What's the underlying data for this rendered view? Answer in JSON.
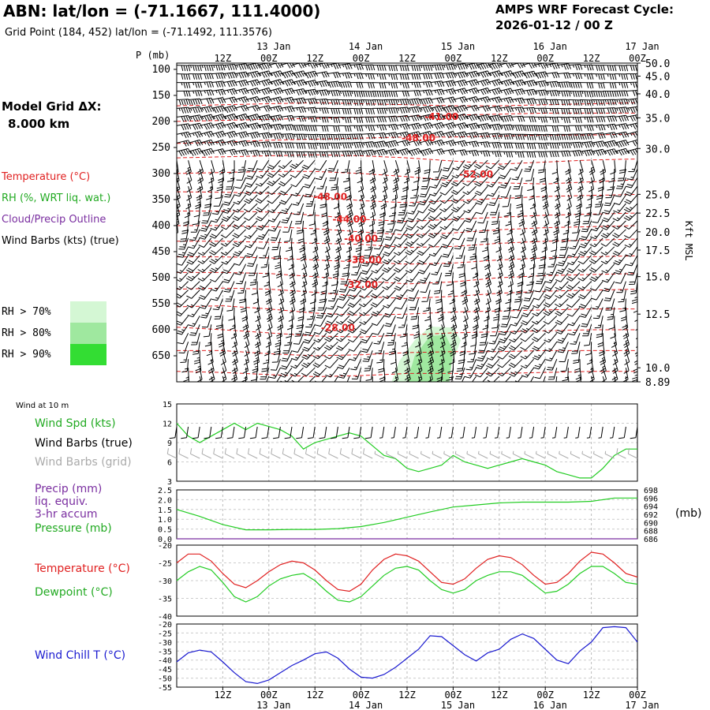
{
  "header": {
    "title": "ABN:  lat/lon = (-71.1667, 111.4000)",
    "subtitle": "Grid Point (184, 452) lat/lon = (-71.1492, 111.3576)",
    "cycle_line1": "AMPS WRF Forecast Cycle:",
    "cycle_line2": "2026-01-12 / 00  Z"
  },
  "model": {
    "grid_label": "Model Grid ΔX:",
    "grid_value": "8.000 km"
  },
  "colors": {
    "temp": "#e02020",
    "dew": "#22cc22",
    "wind_chill": "#1a1ad0",
    "cloud": "#7a2ea0",
    "grid_barbs": "#aaaaaa",
    "rh70": "#d4f7d4",
    "rh80": "#9fe89f",
    "rh90": "#33dd33"
  },
  "upper_panel": {
    "pressure_axis_label": "P (mb)",
    "right_axis_label": "Kft MSL",
    "legend": [
      {
        "text": "Temperature (°C)",
        "color": "#e02020"
      },
      {
        "text": "RH (%, WRT liq. wat.)",
        "color": "#22aa22"
      },
      {
        "text": "Cloud/Precip Outline",
        "color": "#7a2ea0"
      },
      {
        "text": "Wind Barbs (kts) (true)",
        "color": "#000000"
      }
    ],
    "rh_legend": [
      "RH > 70%",
      "RH > 80%",
      "RH > 90%"
    ]
  },
  "lower_panels": {
    "wind_header": "Wind at 10 m",
    "wind_legend": [
      {
        "text": "Wind Spd (kts)",
        "color": "#22aa22"
      },
      {
        "text": "Wind Barbs (true)",
        "color": "#000000"
      },
      {
        "text": "Wind Barbs (grid)",
        "color": "#aaaaaa"
      }
    ],
    "precip_legend": [
      {
        "text": "Precip (mm)",
        "color": "#7a2ea0"
      },
      {
        "text": "liq. equiv.",
        "color": "#7a2ea0"
      },
      {
        "text": "3-hr accum",
        "color": "#7a2ea0"
      },
      {
        "text": "Pressure (mb)",
        "color": "#22aa22"
      }
    ],
    "precip_right_unit": "(mb)",
    "temp_legend": [
      {
        "text": "Temperature (°C)",
        "color": "#e02020"
      },
      {
        "text": "Dewpoint (°C)",
        "color": "#22aa22"
      }
    ],
    "chill_legend": [
      {
        "text": "Wind Chill T (°C)",
        "color": "#1a1ad0"
      }
    ]
  },
  "chart_data": [
    {
      "type": "contour",
      "name": "time-height cross section",
      "x_hours": [
        0,
        120
      ],
      "time_ticks": [
        {
          "h": 12,
          "label": "12Z",
          "day": ""
        },
        {
          "h": 24,
          "label": "00Z",
          "day": "13 Jan"
        },
        {
          "h": 36,
          "label": "12Z",
          "day": ""
        },
        {
          "h": 48,
          "label": "00Z",
          "day": "14 Jan"
        },
        {
          "h": 60,
          "label": "12Z",
          "day": ""
        },
        {
          "h": 72,
          "label": "00Z",
          "day": "15 Jan"
        },
        {
          "h": 84,
          "label": "12Z",
          "day": ""
        },
        {
          "h": 96,
          "label": "00Z",
          "day": "16 Jan"
        },
        {
          "h": 108,
          "label": "12Z",
          "day": ""
        },
        {
          "h": 120,
          "label": "00Z",
          "day": "17 Jan"
        }
      ],
      "pressure_ticks": [
        100,
        150,
        200,
        250,
        300,
        350,
        400,
        450,
        500,
        550,
        600,
        650
      ],
      "height_ticks": [
        "50.0",
        "45.0",
        "40.0",
        "35.0",
        "30.0",
        "25.0",
        "22.5",
        "20.0",
        "17.5",
        "15.0",
        "12.5",
        "10.0",
        "8.89"
      ],
      "height_tick_pressures": [
        88,
        113,
        147,
        193,
        252,
        340,
        376,
        412,
        447,
        498,
        570,
        673,
        700
      ],
      "pressure_range": [
        88,
        700
      ],
      "temperature_contour_labels": [
        {
          "text": "-41.00",
          "h": 69,
          "p": 197
        },
        {
          "text": "-48.00",
          "h": 63,
          "p": 238
        },
        {
          "text": "-52.00",
          "h": 78,
          "p": 308
        },
        {
          "text": "-48.00",
          "h": 40,
          "p": 351
        },
        {
          "text": "-44.00",
          "h": 45,
          "p": 394
        },
        {
          "text": "-40.00",
          "h": 48,
          "p": 431
        },
        {
          "text": "-36.00",
          "h": 49,
          "p": 472
        },
        {
          "text": "-32.00",
          "h": 48,
          "p": 520
        },
        {
          "text": "-28.00",
          "h": 42,
          "p": 602
        }
      ],
      "temperature_contours": [
        {
          "p": [
            170,
            168,
            166,
            164,
            166,
            168,
            170,
            170,
            168,
            166,
            164
          ]
        },
        {
          "p": [
            200,
            198,
            196,
            194,
            192,
            190,
            188,
            186,
            184,
            184,
            184
          ]
        },
        {
          "p": [
            242,
            240,
            236,
            234,
            232,
            230,
            230,
            228,
            226,
            226,
            224
          ]
        },
        {
          "p": [
            270,
            268,
            266,
            264,
            266,
            270,
            276,
            282,
            278,
            274,
            272
          ]
        },
        {
          "p": [
            300,
            298,
            296,
            296,
            300,
            306,
            314,
            318,
            320,
            316,
            312
          ]
        },
        {
          "p": [
            335,
            336,
            338,
            344,
            352,
            356,
            352,
            348,
            344,
            342,
            340
          ]
        },
        {
          "p": [
            372,
            372,
            374,
            380,
            388,
            392,
            388,
            384,
            380,
            378,
            376
          ]
        },
        {
          "p": [
            400,
            400,
            402,
            406,
            412,
            418,
            414,
            408,
            404,
            402,
            400
          ]
        },
        {
          "p": [
            430,
            430,
            432,
            434,
            436,
            442,
            440,
            434,
            430,
            428,
            426
          ]
        },
        {
          "p": [
            460,
            460,
            462,
            466,
            470,
            474,
            472,
            466,
            462,
            460,
            458
          ]
        },
        {
          "p": [
            490,
            490,
            492,
            498,
            506,
            512,
            508,
            500,
            496,
            494,
            492
          ]
        },
        {
          "p": [
            522,
            520,
            522,
            528,
            536,
            540,
            536,
            530,
            526,
            524,
            522
          ]
        },
        {
          "p": [
            556,
            554,
            560,
            568,
            572,
            570,
            566,
            564,
            562,
            560,
            560
          ]
        },
        {
          "p": [
            595,
            600,
            606,
            612,
            614,
            610,
            606,
            604,
            602,
            600,
            600
          ]
        },
        {
          "p": [
            640,
            640,
            646,
            650,
            648,
            644,
            642,
            642,
            640,
            640,
            640
          ]
        },
        {
          "p": [
            680,
            682,
            686,
            690,
            688,
            684,
            684,
            684,
            682,
            680,
            680
          ]
        }
      ],
      "rh_regions": [
        {
          "level": 70,
          "h": [
            56,
            58,
            62,
            66,
            72,
            74,
            72,
            66,
            58,
            52,
            50,
            52
          ],
          "p": [
            700,
            660,
            620,
            594,
            596,
            620,
            660,
            700,
            700,
            700,
            700,
            700
          ]
        },
        {
          "level": 80,
          "h": [
            60,
            62,
            66,
            70,
            72,
            71,
            68,
            62
          ],
          "p": [
            700,
            650,
            612,
            610,
            640,
            700,
            700,
            700
          ]
        }
      ]
    },
    {
      "type": "line",
      "name": "10 m wind speed",
      "ylim": [
        3,
        15
      ],
      "yticks": [
        3,
        6,
        9,
        12,
        15
      ],
      "x_hours": [
        0,
        3,
        6,
        9,
        12,
        15,
        18,
        21,
        24,
        27,
        30,
        33,
        36,
        39,
        42,
        45,
        48,
        51,
        54,
        57,
        60,
        63,
        66,
        69,
        72,
        75,
        78,
        81,
        84,
        87,
        90,
        93,
        96,
        99,
        102,
        105,
        108,
        111,
        114,
        117,
        120
      ],
      "wind_speed_kts": [
        12,
        10,
        9,
        10,
        11,
        12,
        11,
        12,
        11.5,
        11,
        10,
        8,
        9,
        9.5,
        10,
        10.5,
        10,
        8.5,
        7,
        6.5,
        5,
        4.5,
        5,
        5.5,
        7,
        6,
        5.5,
        5,
        5.5,
        6,
        6.5,
        6,
        5.5,
        4.5,
        4,
        3.5,
        3.5,
        5,
        7,
        8,
        8
      ],
      "barb_speeds_true": [
        11,
        10,
        9,
        10,
        11,
        12,
        11,
        12,
        11,
        11,
        10,
        8,
        9,
        9,
        10,
        10,
        10,
        8,
        7,
        6,
        5,
        5,
        5,
        5,
        7,
        6,
        5,
        5,
        5,
        6,
        6,
        6,
        5,
        4,
        4,
        3,
        3,
        5,
        7,
        8,
        8
      ]
    },
    {
      "type": "line",
      "name": "precip and surface pressure",
      "ylim": [
        0,
        2.5
      ],
      "yticks": [
        0.0,
        0.5,
        1.0,
        1.5,
        2.0,
        2.5
      ],
      "y2lim": [
        686,
        698
      ],
      "y2ticks": [
        686,
        688,
        690,
        692,
        694,
        696,
        698
      ],
      "x_hours": [
        0,
        6,
        12,
        18,
        24,
        30,
        36,
        42,
        48,
        54,
        60,
        66,
        72,
        78,
        84,
        90,
        96,
        102,
        108,
        114,
        120
      ],
      "pressure_mb": [
        693.2,
        691.5,
        689.5,
        688.2,
        688.2,
        688.3,
        688.3,
        688.5,
        689.0,
        690.0,
        691.3,
        692.6,
        693.8,
        694.3,
        694.8,
        695.0,
        695.0,
        695.0,
        695.2,
        696.0,
        696.0
      ],
      "precip_mm": [
        0,
        0,
        0,
        0,
        0,
        0,
        0,
        0,
        0,
        0,
        0,
        0,
        0,
        0,
        0,
        0,
        0,
        0,
        0,
        0,
        0
      ]
    },
    {
      "type": "line",
      "name": "temperature and dewpoint",
      "ylim": [
        -40,
        -20
      ],
      "yticks": [
        -40,
        -35,
        -30,
        -25,
        -20
      ],
      "x_hours": [
        0,
        3,
        6,
        9,
        12,
        15,
        18,
        21,
        24,
        27,
        30,
        33,
        36,
        39,
        42,
        45,
        48,
        51,
        54,
        57,
        60,
        63,
        66,
        69,
        72,
        75,
        78,
        81,
        84,
        87,
        90,
        93,
        96,
        99,
        102,
        105,
        108,
        111,
        114,
        117,
        120
      ],
      "series": [
        {
          "name": "Temperature",
          "values": [
            -25,
            -22.5,
            -22.5,
            -24.5,
            -28,
            -31,
            -32,
            -30,
            -27.5,
            -25.5,
            -24.5,
            -25,
            -27,
            -30,
            -32.5,
            -33,
            -31,
            -27,
            -24,
            -22.5,
            -23,
            -24.5,
            -27.5,
            -30.5,
            -31,
            -29.5,
            -26.5,
            -24,
            -23,
            -23.5,
            -25.5,
            -28.5,
            -31,
            -30.5,
            -28,
            -24.5,
            -22,
            -22.5,
            -25,
            -28,
            -29
          ]
        },
        {
          "name": "Dewpoint",
          "values": [
            -30,
            -27.5,
            -26,
            -27,
            -30.5,
            -34.5,
            -36,
            -34.5,
            -31.5,
            -29.5,
            -28.5,
            -28,
            -30,
            -33,
            -35.5,
            -36,
            -34.5,
            -31.5,
            -28.5,
            -26.5,
            -26,
            -27,
            -30,
            -32.5,
            -33.5,
            -32.5,
            -30,
            -28.5,
            -27.5,
            -27.5,
            -28.5,
            -31,
            -33.5,
            -33,
            -31,
            -28,
            -26,
            -26,
            -28,
            -30.5,
            -31
          ]
        }
      ]
    },
    {
      "type": "line",
      "name": "wind chill",
      "ylim": [
        -55,
        -20
      ],
      "yticks": [
        -55,
        -50,
        -45,
        -40,
        -35,
        -30,
        -25,
        -20
      ],
      "x_hours": [
        0,
        3,
        6,
        9,
        12,
        15,
        18,
        21,
        24,
        27,
        30,
        33,
        36,
        39,
        42,
        45,
        48,
        51,
        54,
        57,
        60,
        63,
        66,
        69,
        72,
        75,
        78,
        81,
        84,
        87,
        90,
        93,
        96,
        99,
        102,
        105,
        108,
        111,
        114,
        117,
        120
      ],
      "series": [
        {
          "name": "Wind Chill",
          "values": [
            -41,
            -36,
            -34.5,
            -35.5,
            -41,
            -47,
            -52,
            -53,
            -51,
            -47,
            -43,
            -40,
            -36.5,
            -35.5,
            -39,
            -45,
            -49.5,
            -50,
            -48,
            -44,
            -39,
            -34,
            -26.5,
            -27,
            -32,
            -37,
            -40.5,
            -36,
            -34,
            -28.5,
            -25.5,
            -28,
            -34,
            -40,
            -42,
            -35,
            -30,
            -22,
            -21.5,
            -22,
            -30
          ]
        }
      ]
    }
  ]
}
